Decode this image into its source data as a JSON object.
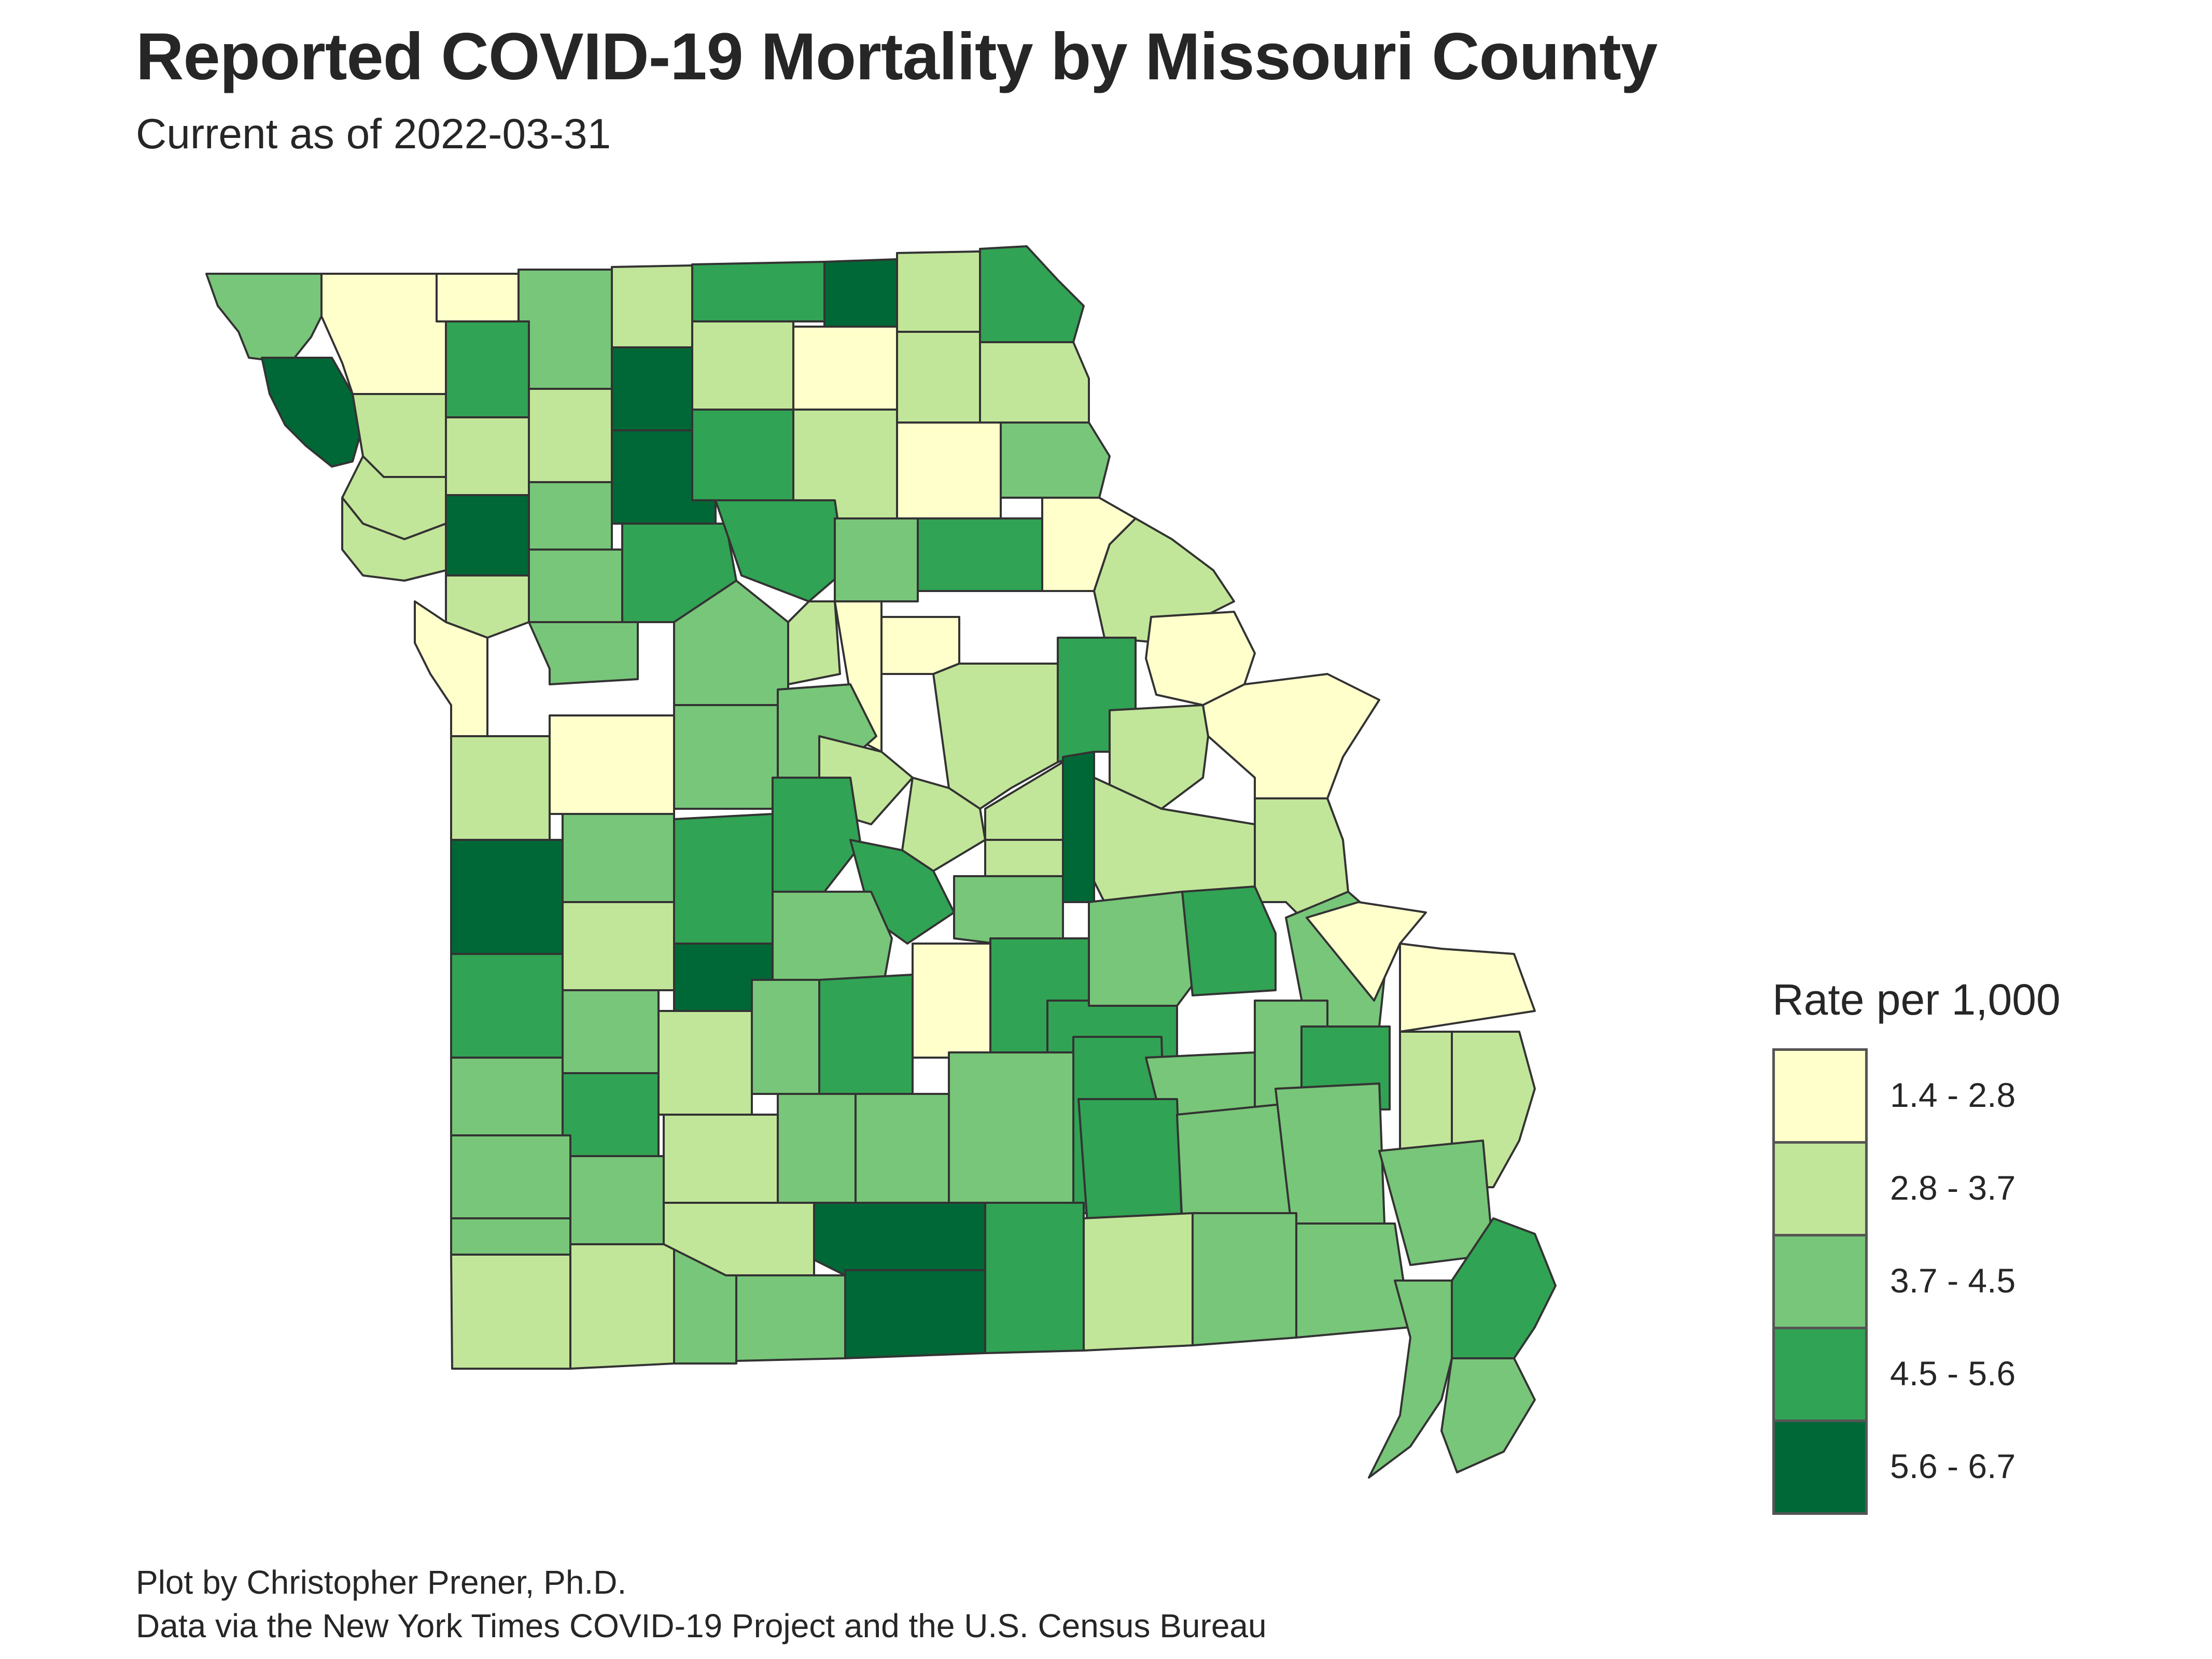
{
  "title": "Reported COVID-19 Mortality by Missouri County",
  "subtitle": "Current as of 2022-03-31",
  "legend": {
    "title": "Rate per 1,000",
    "items": [
      {
        "label": "1.4 - 2.8",
        "color": "#ffffcc"
      },
      {
        "label": "2.8 - 3.7",
        "color": "#c2e699"
      },
      {
        "label": "3.7 - 4.5",
        "color": "#78c679"
      },
      {
        "label": "4.5 - 5.6",
        "color": "#31a354"
      },
      {
        "label": "5.6 - 6.7",
        "color": "#006837"
      }
    ]
  },
  "caption": {
    "line1": "Plot by Christopher Prener, Ph.D.",
    "line2": "Data via the New York Times COVID-19 Project and the U.S. Census Bureau"
  },
  "colors": {
    "c1": "#ffffcc",
    "c2": "#c2e699",
    "c3": "#78c679",
    "c4": "#31a354",
    "c5": "#006837",
    "border": "#333333"
  }
}
